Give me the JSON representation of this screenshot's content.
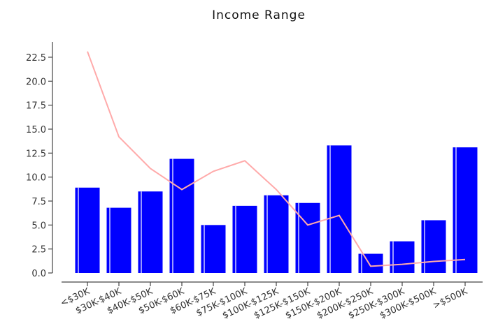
{
  "chart_data": {
    "type": "bar",
    "title": "Income Range",
    "categories": [
      "<$30K",
      "$30K-$40K",
      "$40K-$50K",
      "$50K-$60K",
      "$60K-$75K",
      "$75K-$100K",
      "$100K-$125K",
      "$125K-$150K",
      "$150K-$200K",
      "$200K-$250K",
      "$250K-$300K",
      "$300K-$500K",
      ">$500K"
    ],
    "series": [
      {
        "type": "bar",
        "color": "#0000ff",
        "values": [
          8.9,
          6.8,
          8.5,
          11.9,
          5.0,
          7.0,
          8.1,
          7.3,
          13.3,
          2.0,
          3.3,
          5.5,
          13.1
        ]
      },
      {
        "type": "line",
        "color": "#ffaaaa",
        "values": [
          23.1,
          14.2,
          10.9,
          8.7,
          10.6,
          11.7,
          8.7,
          5.0,
          6.0,
          0.7,
          0.9,
          1.2,
          1.4
        ]
      }
    ],
    "ylim": [
      0,
      24.1
    ],
    "yticks": [
      {
        "value": 0,
        "label": "0.0"
      },
      {
        "value": 2.5,
        "label": "2.5"
      },
      {
        "value": 5,
        "label": "5.0"
      },
      {
        "value": 7.5,
        "label": "7.5"
      },
      {
        "value": 10,
        "label": "10.0"
      },
      {
        "value": 12.5,
        "label": "12.5"
      },
      {
        "value": 15,
        "label": "15.0"
      },
      {
        "value": 17.5,
        "label": "17.5"
      },
      {
        "value": 20,
        "label": "20.0"
      },
      {
        "value": 22.5,
        "label": "22.5"
      }
    ],
    "grid": false
  }
}
